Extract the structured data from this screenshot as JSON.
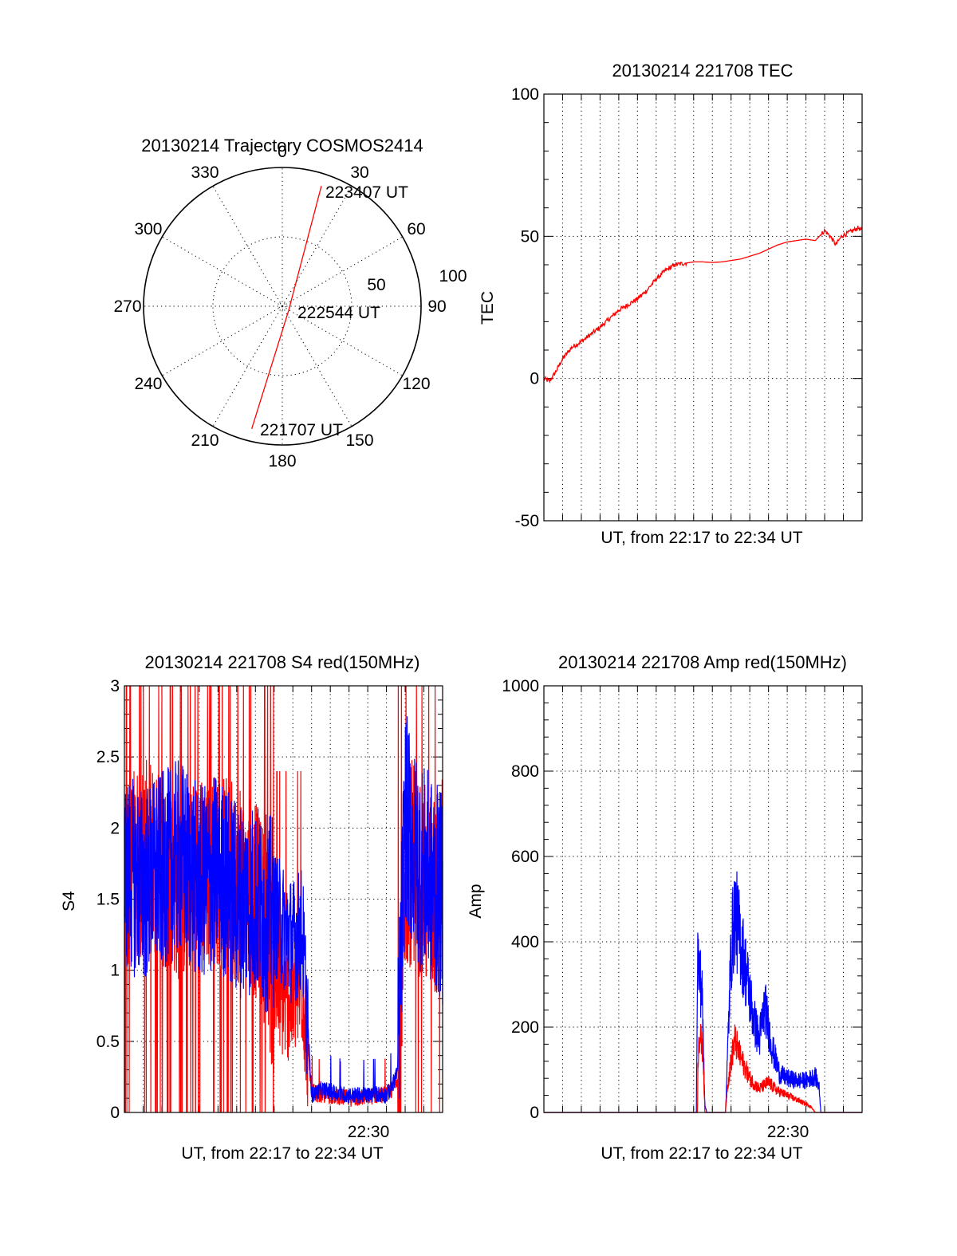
{
  "colors": {
    "red_series": "#ff0000",
    "blue_series": "#0000ff",
    "axes": "#000000",
    "background": "#ffffff"
  },
  "chart_data": [
    {
      "type": "polar",
      "title": "20130214 Trajectory COSMOS2414",
      "angle_labels": [
        "0",
        "30",
        "60",
        "90",
        "120",
        "150",
        "180",
        "210",
        "240",
        "270",
        "300",
        "330"
      ],
      "radius_labels": [
        "50",
        "100"
      ],
      "grid": true,
      "series": [
        {
          "color": "#ff0000",
          "points": [
            {
              "label": "221707 UT",
              "azimuth": 194,
              "elevation": 8
            },
            {
              "label": "222544 UT",
              "azimuth": 125,
              "elevation": 85
            },
            {
              "label": "223407 UT",
              "azimuth": 18,
              "elevation": 8
            }
          ]
        }
      ]
    },
    {
      "type": "line",
      "title": "20130214 221708 TEC",
      "xlabel": "UT, from 22:17 to 22:34 UT",
      "ylabel": "TEC",
      "ylim": [
        -50,
        100
      ],
      "yticks": [
        -50,
        0,
        50,
        100
      ],
      "xlim_minutes": [
        0,
        17
      ],
      "grid": true,
      "series": [
        {
          "color": "#ff0000",
          "x_minutes": [
            0,
            0.3,
            0.6,
            1,
            1.5,
            2,
            2.5,
            3,
            3.5,
            4,
            4.5,
            5,
            5.5,
            6,
            6.5,
            7,
            7.5,
            8,
            8.5,
            9,
            9.5,
            10,
            10.5,
            11,
            11.5,
            12,
            12.5,
            13,
            13.5,
            14,
            14.5,
            15,
            15.3,
            15.6,
            15.9,
            16.2,
            16.5,
            16.8,
            17
          ],
          "values": [
            0,
            -1,
            2,
            7,
            11,
            13,
            15.5,
            18,
            21,
            24,
            26,
            28,
            31,
            35,
            38,
            40,
            40.5,
            41,
            41,
            40.8,
            41,
            41.5,
            42,
            43,
            44,
            45.5,
            47,
            48,
            48.5,
            49,
            48.5,
            52,
            50,
            47,
            50,
            51,
            52,
            53,
            52
          ]
        }
      ]
    },
    {
      "type": "line",
      "title": "20130214 221708 S4 red(150MHz)",
      "xlabel": "UT, from 22:17 to 22:34 UT",
      "ylabel": "S4",
      "ylim": [
        0,
        3
      ],
      "yticks": [
        "0",
        "0.5",
        "1",
        "1.5",
        "2",
        "2.5",
        "3"
      ],
      "xtick_label": "22:30",
      "xlim_minutes": [
        0,
        17
      ],
      "grid": true,
      "series": [
        {
          "color": "#ff0000",
          "x_minutes": [
            0,
            1,
            2,
            3,
            4,
            5,
            6,
            7,
            7.5,
            8,
            8.5,
            9,
            9.5,
            10,
            10.5,
            11,
            11.5,
            12,
            12.5,
            13,
            13.5,
            14,
            14.3,
            14.6,
            15,
            15.5,
            16,
            16.5,
            17
          ],
          "values": [
            1.7,
            1.8,
            1.7,
            1.6,
            1.7,
            1.7,
            1.6,
            1.5,
            1.3,
            0.9,
            0.8,
            0.8,
            0.9,
            0.15,
            0.12,
            0.12,
            0.11,
            0.1,
            0.1,
            0.11,
            0.12,
            0.13,
            0.16,
            0.25,
            1.7,
            1.8,
            1.6,
            1.5,
            1.6
          ]
        },
        {
          "color": "#0000ff",
          "x_minutes": [
            0,
            1,
            2,
            3,
            4,
            5,
            6,
            7,
            7.5,
            8,
            8.5,
            9,
            9.5,
            10,
            10.5,
            11,
            11.5,
            12,
            12.5,
            13,
            13.5,
            14,
            14.3,
            14.6,
            15,
            15.5,
            16,
            16.5,
            17
          ],
          "values": [
            1.7,
            1.6,
            1.7,
            1.8,
            1.6,
            1.7,
            1.5,
            1.5,
            1.4,
            1.4,
            1.3,
            1.2,
            1.3,
            0.12,
            0.16,
            0.15,
            0.13,
            0.12,
            0.12,
            0.12,
            0.13,
            0.12,
            0.18,
            0.3,
            2.1,
            1.8,
            1.7,
            1.6,
            1.5
          ]
        }
      ]
    },
    {
      "type": "line",
      "title": "20130214 221708 Amp red(150MHz)",
      "xlabel": "UT, from 22:17 to 22:34 UT",
      "ylabel": "Amp",
      "ylim": [
        0,
        1000
      ],
      "yticks": [
        "0",
        "200",
        "400",
        "600",
        "800",
        "1000"
      ],
      "xtick_label": "22:30",
      "xlim_minutes": [
        0,
        17
      ],
      "grid": true,
      "series": [
        {
          "color": "#ff0000",
          "x_minutes": [
            0,
            8.2,
            8.25,
            8.3,
            8.5,
            8.6,
            8.7,
            9.7,
            9.8,
            10,
            10.2,
            10.5,
            11,
            11.5,
            12,
            12.5,
            13,
            13.5,
            14,
            14.3,
            14.5,
            17
          ],
          "values": [
            0,
            0,
            150,
            180,
            150,
            0,
            0,
            0,
            60,
            120,
            170,
            130,
            80,
            55,
            70,
            50,
            40,
            30,
            20,
            12,
            0,
            0
          ]
        },
        {
          "color": "#0000ff",
          "x_minutes": [
            0,
            8.15,
            8.2,
            8.3,
            8.45,
            8.6,
            8.7,
            9.7,
            9.8,
            10,
            10.2,
            10.5,
            10.8,
            11.2,
            11.5,
            11.8,
            12.2,
            12.6,
            13,
            13.5,
            14,
            14.5,
            14.7,
            14.8,
            17
          ],
          "values": [
            0,
            0,
            380,
            330,
            280,
            20,
            0,
            0,
            120,
            380,
            470,
            400,
            330,
            220,
            170,
            250,
            150,
            90,
            80,
            75,
            75,
            85,
            60,
            0,
            0
          ]
        }
      ]
    }
  ]
}
